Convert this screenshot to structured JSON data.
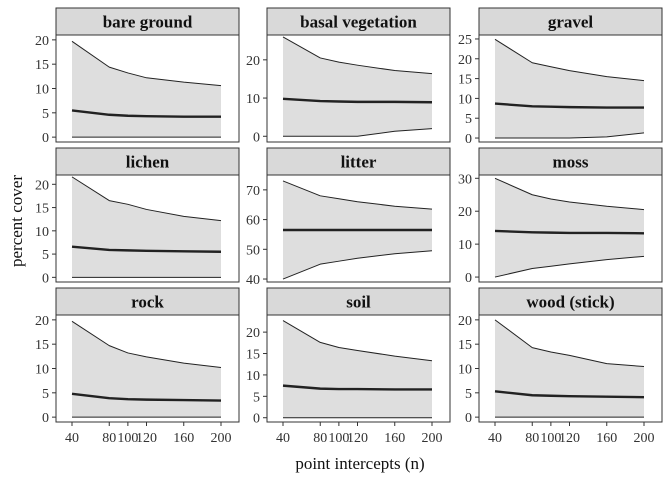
{
  "chart_data": {
    "type": "area",
    "title": "",
    "xlabel": "point intercepts (n)",
    "ylabel": "percent cover",
    "x": [
      40,
      80,
      100,
      120,
      160,
      200
    ],
    "x_ticks": [
      40,
      80,
      100,
      120,
      160,
      200
    ],
    "xlim": [
      40,
      200
    ],
    "grid": false,
    "band_color": "#dedede",
    "line_color": "#222222",
    "strip_color": "#d9d9d9",
    "panels": [
      {
        "name": "bare ground",
        "ylim": [
          -1,
          21
        ],
        "yticks": [
          0,
          5,
          10,
          15,
          20
        ],
        "mean": [
          5.5,
          4.6,
          4.4,
          4.3,
          4.2,
          4.2
        ],
        "upper": [
          19.7,
          14.4,
          13.2,
          12.2,
          11.3,
          10.6
        ],
        "lower": [
          0,
          0,
          0,
          0,
          0,
          0
        ]
      },
      {
        "name": "basal vegetation",
        "ylim": [
          -1.5,
          26.5
        ],
        "yticks": [
          0,
          10,
          20
        ],
        "mean": [
          9.8,
          9.2,
          9.1,
          9.0,
          9.0,
          8.9
        ],
        "upper": [
          26.0,
          20.5,
          19.4,
          18.6,
          17.2,
          16.4
        ],
        "lower": [
          0,
          0,
          0,
          0,
          1.3,
          2.0
        ]
      },
      {
        "name": "gravel",
        "ylim": [
          -1,
          26
        ],
        "yticks": [
          0,
          5,
          10,
          15,
          20,
          25
        ],
        "mean": [
          8.7,
          8.0,
          7.9,
          7.8,
          7.7,
          7.7
        ],
        "upper": [
          24.9,
          19.0,
          18.0,
          17.0,
          15.5,
          14.5
        ],
        "lower": [
          0,
          0,
          0,
          0,
          0.3,
          1.3
        ]
      },
      {
        "name": "lichen",
        "ylim": [
          -1,
          22
        ],
        "yticks": [
          0,
          5,
          10,
          15,
          20
        ],
        "mean": [
          6.6,
          5.9,
          5.8,
          5.7,
          5.6,
          5.5
        ],
        "upper": [
          21.6,
          16.5,
          15.7,
          14.6,
          13.1,
          12.2
        ],
        "lower": [
          0,
          0,
          0,
          0,
          0,
          0
        ]
      },
      {
        "name": "litter",
        "ylim": [
          39,
          75
        ],
        "yticks": [
          40,
          50,
          60,
          70
        ],
        "mean": [
          56.5,
          56.5,
          56.5,
          56.5,
          56.5,
          56.5
        ],
        "upper": [
          73.0,
          68.0,
          67.0,
          66.0,
          64.5,
          63.5
        ],
        "lower": [
          40.0,
          45.0,
          46.0,
          47.0,
          48.5,
          49.5
        ]
      },
      {
        "name": "moss",
        "ylim": [
          -1.5,
          31
        ],
        "yticks": [
          0,
          10,
          20,
          30
        ],
        "mean": [
          14.0,
          13.6,
          13.5,
          13.4,
          13.4,
          13.3
        ],
        "upper": [
          30.0,
          25.0,
          23.7,
          22.8,
          21.5,
          20.5
        ],
        "lower": [
          0,
          2.6,
          3.3,
          4.0,
          5.3,
          6.3
        ]
      },
      {
        "name": "rock",
        "ylim": [
          -1,
          21
        ],
        "yticks": [
          0,
          5,
          10,
          15,
          20
        ],
        "mean": [
          4.8,
          3.9,
          3.7,
          3.6,
          3.5,
          3.4
        ],
        "upper": [
          19.7,
          14.7,
          13.2,
          12.4,
          11.1,
          10.2
        ],
        "lower": [
          0,
          0,
          0,
          0,
          0,
          0
        ]
      },
      {
        "name": "soil",
        "ylim": [
          -1,
          24
        ],
        "yticks": [
          0,
          5,
          10,
          15,
          20
        ],
        "mean": [
          7.5,
          6.8,
          6.7,
          6.7,
          6.6,
          6.6
        ],
        "upper": [
          22.7,
          17.6,
          16.4,
          15.7,
          14.4,
          13.3
        ],
        "lower": [
          0,
          0,
          0,
          0,
          0,
          0
        ]
      },
      {
        "name": "wood (stick)",
        "ylim": [
          -1,
          21
        ],
        "yticks": [
          0,
          5,
          10,
          15,
          20
        ],
        "mean": [
          5.3,
          4.5,
          4.4,
          4.3,
          4.2,
          4.1
        ],
        "upper": [
          20.0,
          14.3,
          13.4,
          12.7,
          11.0,
          10.4
        ],
        "lower": [
          0,
          0,
          0,
          0,
          0,
          0
        ]
      }
    ]
  }
}
